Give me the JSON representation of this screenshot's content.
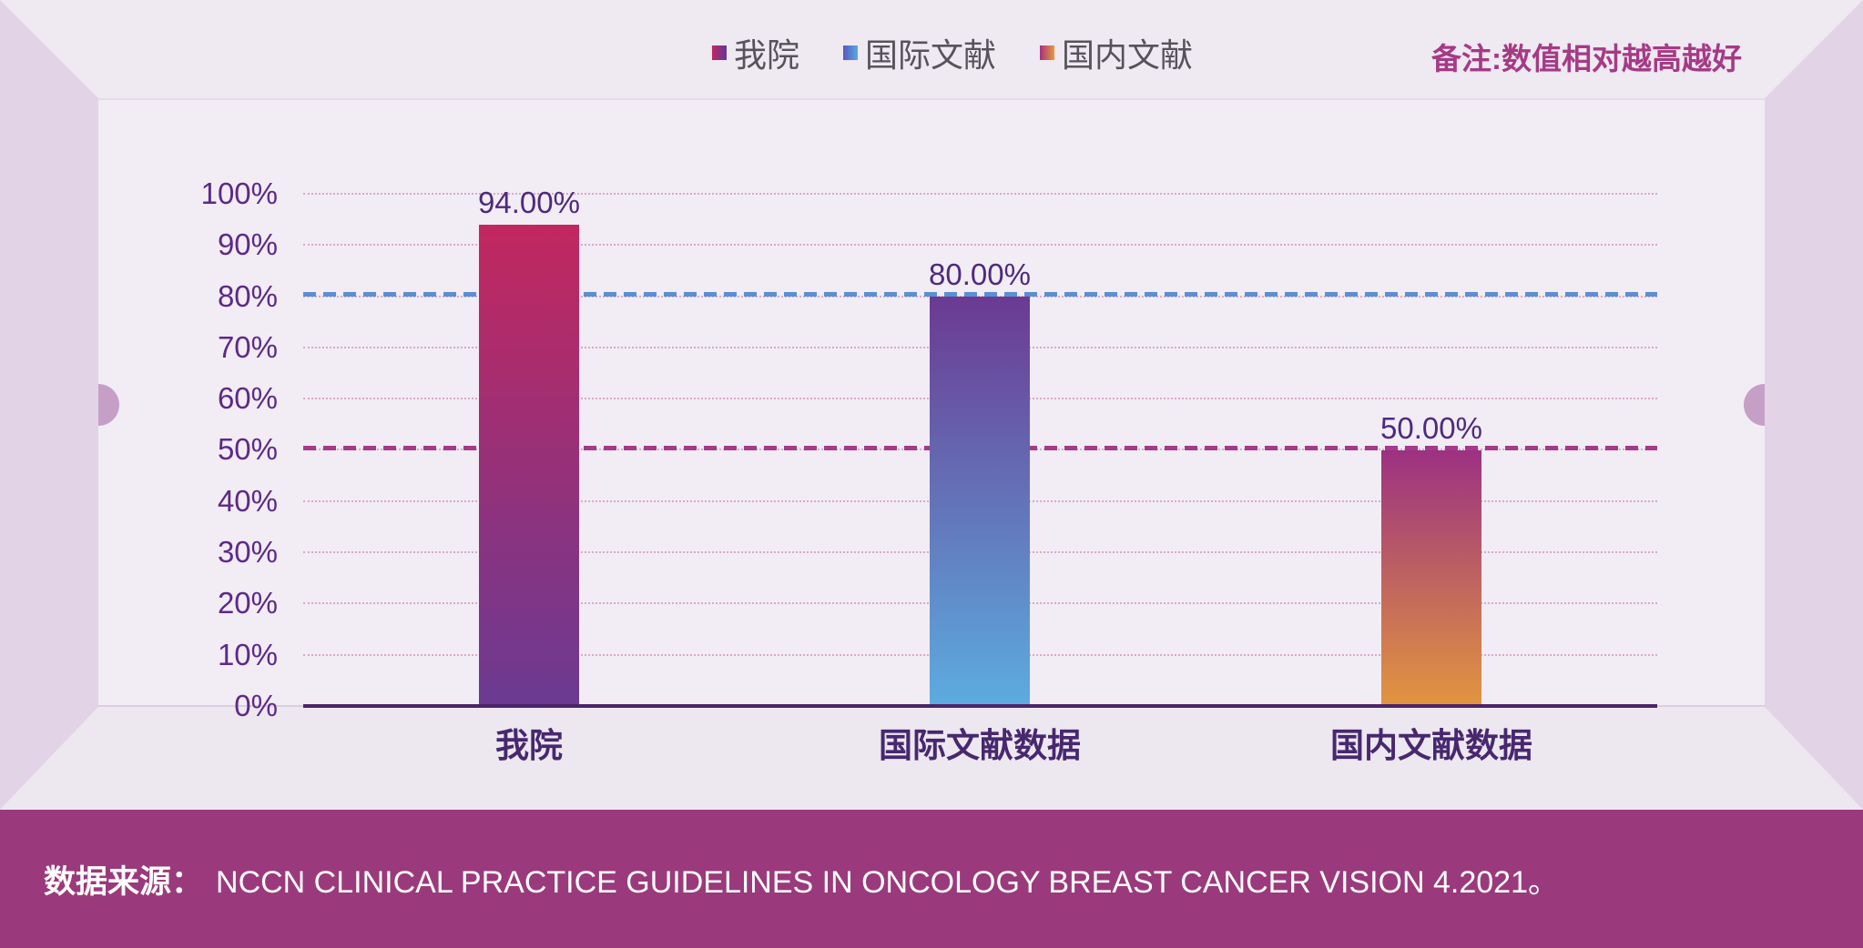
{
  "note": "备注:数值相对越高越好",
  "legend": {
    "items": [
      "我院",
      "国际文献",
      "国内文献"
    ]
  },
  "footer": {
    "source_label": "数据来源：",
    "source_text": "NCCN CLINICAL PRACTICE GUIDELINES IN ONCOLOGY BREAST CANCER VISION 4.2021。"
  },
  "colors": {
    "footer_bar": "#9a3a7c",
    "frame_side": "#e2d4e6",
    "backwall": "#f2ecf5",
    "knob": "#c69fc7",
    "tick_text": "#5c2a87",
    "bar1_gradient": [
      "#c2275f",
      "#6b3a92"
    ],
    "bar2_gradient": [
      "#6b3a92",
      "#5cacdf"
    ],
    "bar3_gradient": [
      "#9c3182",
      "#e2953f"
    ],
    "ref_blue": "#5b8fd3",
    "ref_magenta": "#a43a88"
  },
  "chart_data": {
    "type": "bar",
    "title": "",
    "categories": [
      "我院",
      "国际文献数据",
      "国内文献数据"
    ],
    "values": [
      94,
      80,
      50
    ],
    "value_labels": [
      "94.00%",
      "80.00%",
      "50.00%"
    ],
    "yticks": [
      "0%",
      "10%",
      "20%",
      "30%",
      "40%",
      "50%",
      "60%",
      "70%",
      "80%",
      "90%",
      "100%"
    ],
    "ylim": [
      0,
      100
    ],
    "grid": "horizontal-dotted",
    "legend_position": "top-center",
    "legend_entries": [
      "我院",
      "国际文献",
      "国内文献"
    ],
    "reference_lines": [
      {
        "value": 80,
        "color": "#5b8fd3",
        "style": "dashed"
      },
      {
        "value": 50,
        "color": "#a43a88",
        "style": "dashed"
      }
    ],
    "annotation": "备注:数值相对越高越好",
    "source": "数据来源： NCCN CLINICAL PRACTICE GUIDELINES IN ONCOLOGY BREAST CANCER VISION 4.2021。"
  }
}
